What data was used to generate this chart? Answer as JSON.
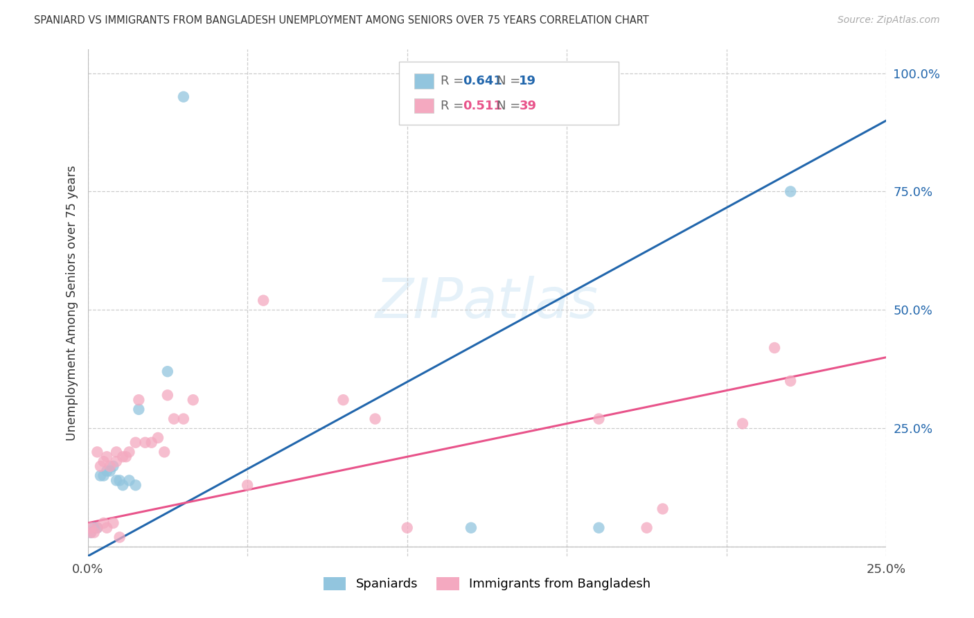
{
  "title": "SPANIARD VS IMMIGRANTS FROM BANGLADESH UNEMPLOYMENT AMONG SENIORS OVER 75 YEARS CORRELATION CHART",
  "source": "Source: ZipAtlas.com",
  "ylabel": "Unemployment Among Seniors over 75 years",
  "R1": 0.641,
  "N1": 19,
  "R2": 0.511,
  "N2": 39,
  "color1": "#92c5de",
  "color2": "#f4a9c0",
  "line_color1": "#2166ac",
  "line_color2": "#e8538a",
  "label1": "Spaniards",
  "label2": "Immigrants from Bangladesh",
  "watermark": "ZIPatlas",
  "xlim": [
    0.0,
    0.25
  ],
  "ylim": [
    -0.02,
    1.05
  ],
  "spaniards_x": [
    0.001,
    0.002,
    0.003,
    0.004,
    0.005,
    0.006,
    0.007,
    0.008,
    0.009,
    0.01,
    0.011,
    0.013,
    0.015,
    0.016,
    0.025,
    0.12,
    0.16,
    0.22,
    0.03
  ],
  "spaniards_y": [
    0.03,
    0.04,
    0.04,
    0.15,
    0.15,
    0.16,
    0.16,
    0.17,
    0.14,
    0.14,
    0.13,
    0.14,
    0.13,
    0.29,
    0.37,
    0.04,
    0.04,
    0.75,
    0.95
  ],
  "bangladesh_x": [
    0.001,
    0.001,
    0.002,
    0.003,
    0.003,
    0.004,
    0.005,
    0.005,
    0.006,
    0.006,
    0.007,
    0.008,
    0.009,
    0.009,
    0.01,
    0.011,
    0.012,
    0.013,
    0.015,
    0.016,
    0.018,
    0.02,
    0.022,
    0.024,
    0.025,
    0.027,
    0.03,
    0.033,
    0.05,
    0.055,
    0.08,
    0.09,
    0.1,
    0.16,
    0.175,
    0.18,
    0.205,
    0.215,
    0.22
  ],
  "bangladesh_y": [
    0.03,
    0.04,
    0.03,
    0.04,
    0.2,
    0.17,
    0.05,
    0.18,
    0.04,
    0.19,
    0.17,
    0.05,
    0.18,
    0.2,
    0.02,
    0.19,
    0.19,
    0.2,
    0.22,
    0.31,
    0.22,
    0.22,
    0.23,
    0.2,
    0.32,
    0.27,
    0.27,
    0.31,
    0.13,
    0.52,
    0.31,
    0.27,
    0.04,
    0.27,
    0.04,
    0.08,
    0.26,
    0.42,
    0.35
  ],
  "blue_line_x": [
    0.0,
    0.25
  ],
  "blue_line_y": [
    -0.02,
    0.9
  ],
  "pink_line_x": [
    0.0,
    0.25
  ],
  "pink_line_y": [
    0.05,
    0.4
  ]
}
